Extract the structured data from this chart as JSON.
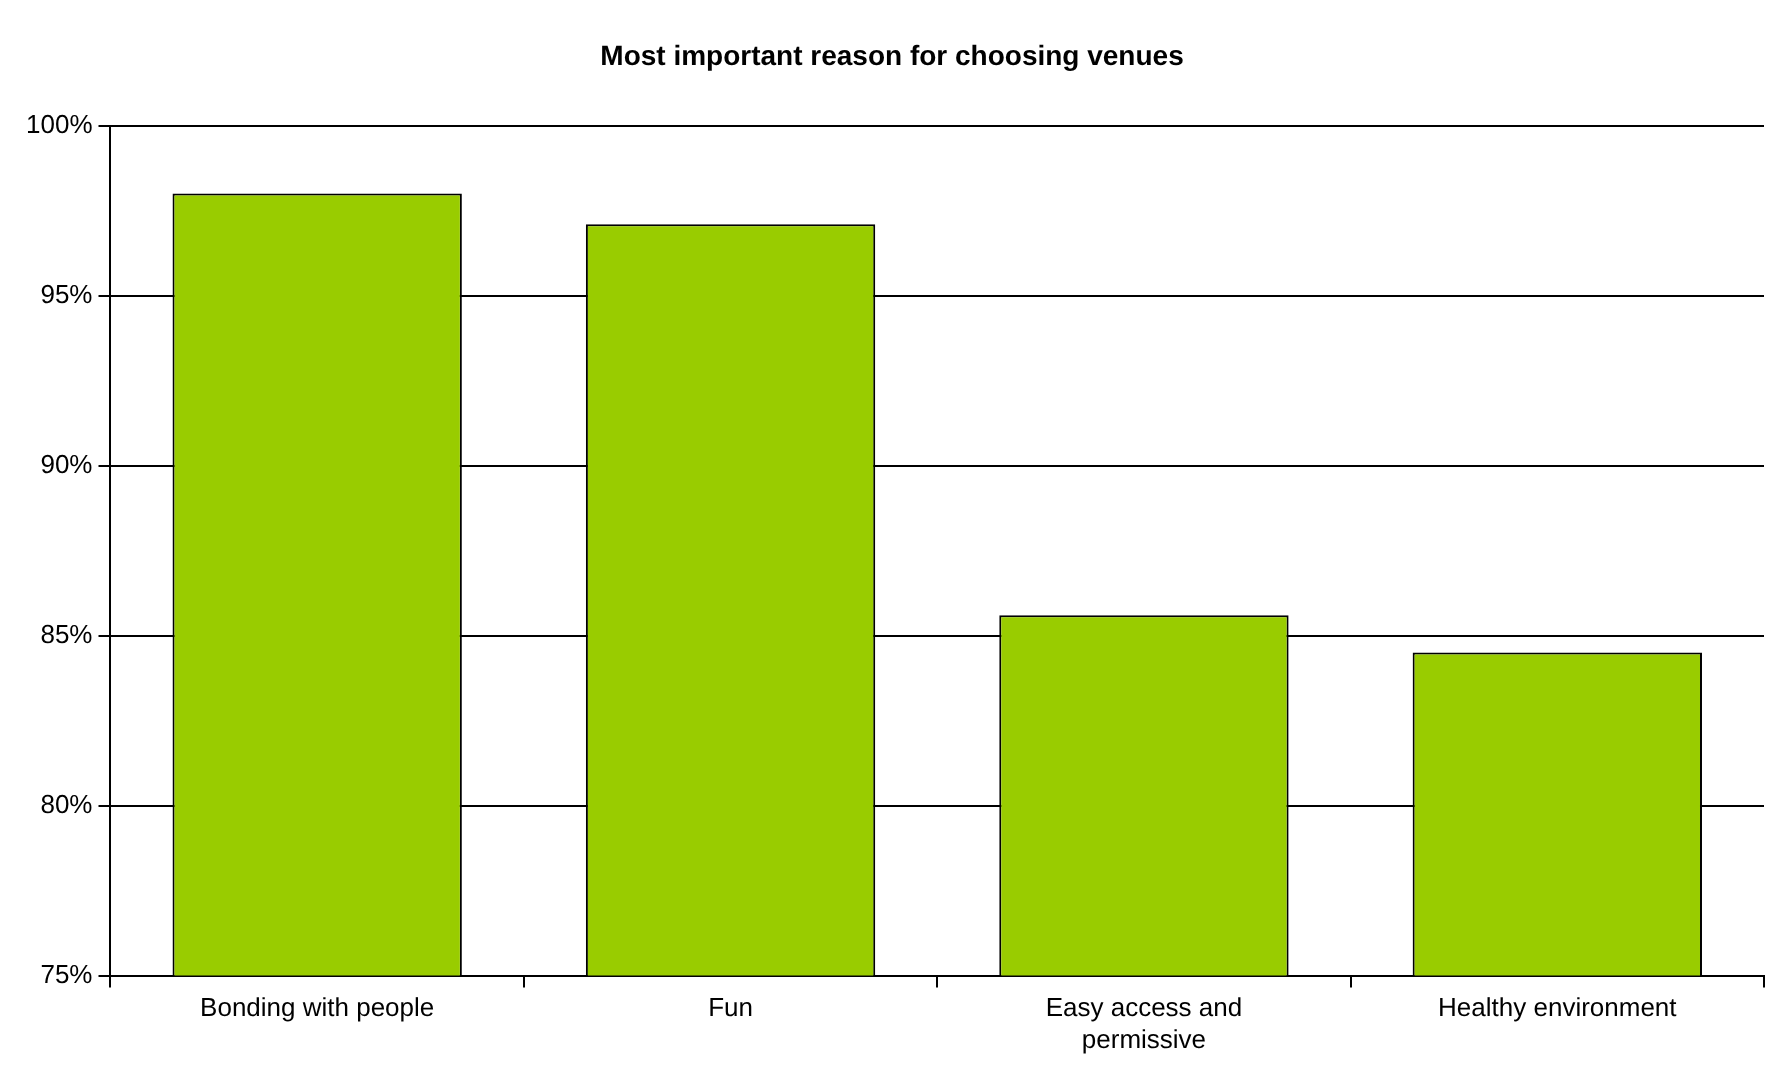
{
  "chart_data": {
    "type": "bar",
    "title": "Most important reason for choosing venues",
    "categories": [
      "Bonding with people",
      "Fun",
      "Easy access and permissive",
      "Healthy environment"
    ],
    "values": [
      98.0,
      97.1,
      85.6,
      84.5
    ],
    "color": "#99cc00",
    "ylim": [
      75,
      100
    ],
    "yticks": [
      {
        "value": 75,
        "label": "75%"
      },
      {
        "value": 80,
        "label": "80%"
      },
      {
        "value": 85,
        "label": "85%"
      },
      {
        "value": 90,
        "label": "90%"
      },
      {
        "value": 95,
        "label": "95%"
      },
      {
        "value": 100,
        "label": "100%"
      }
    ],
    "grid": "y",
    "legend": false
  }
}
